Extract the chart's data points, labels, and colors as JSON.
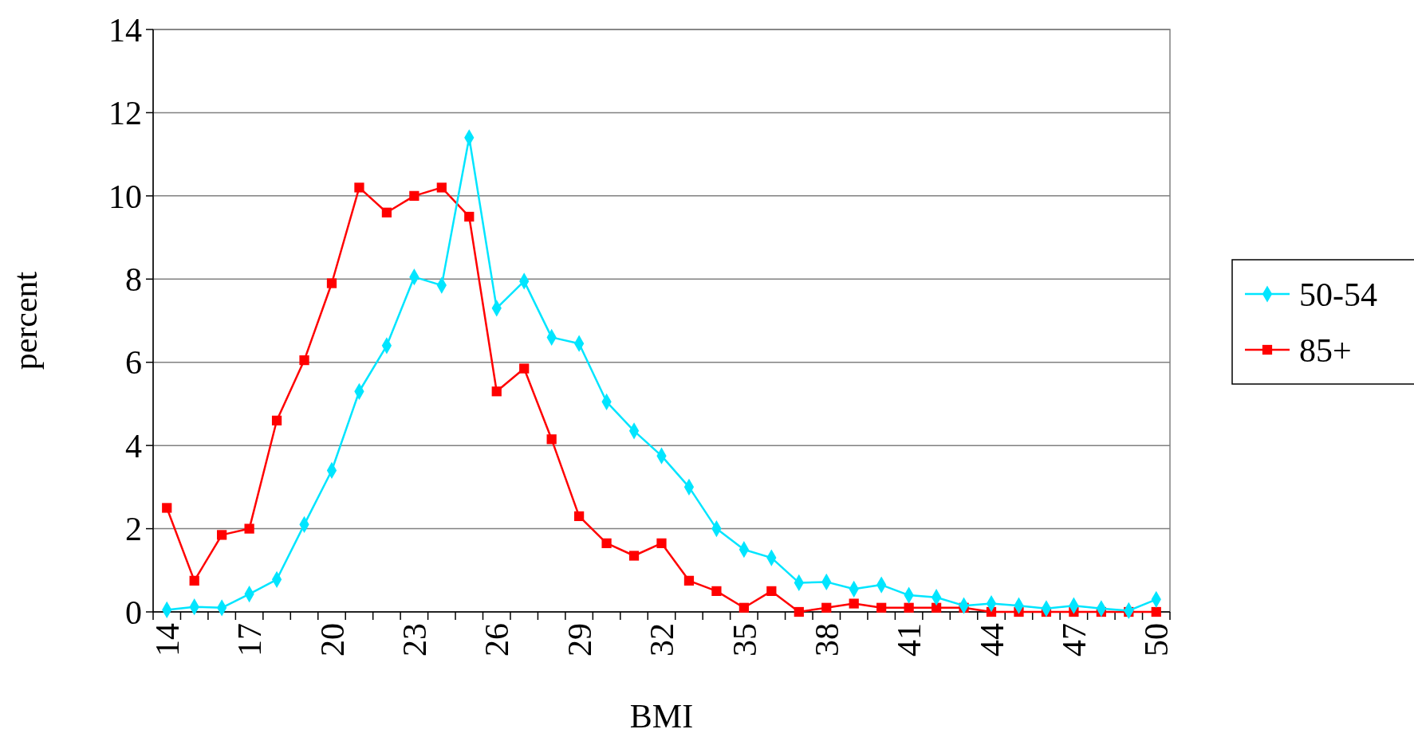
{
  "chart_data": {
    "type": "line",
    "xlabel": "BMI",
    "ylabel": "percent",
    "categories": [
      "14",
      null,
      null,
      "17",
      null,
      null,
      "20",
      null,
      null,
      "23",
      null,
      null,
      "26",
      null,
      null,
      "29",
      null,
      null,
      "32",
      null,
      null,
      "35",
      null,
      null,
      "38",
      null,
      null,
      "41",
      null,
      null,
      "44",
      null,
      null,
      "47",
      null,
      null,
      "50"
    ],
    "series": [
      {
        "name": "50-54",
        "color": "#00e5ff",
        "marker": "diamond",
        "values": [
          0.05,
          0.12,
          0.1,
          0.43,
          0.78,
          2.1,
          3.4,
          5.3,
          6.4,
          8.05,
          7.85,
          11.4,
          7.3,
          7.95,
          6.6,
          6.45,
          5.05,
          4.35,
          3.75,
          3.0,
          2.0,
          1.5,
          1.3,
          0.7,
          0.72,
          0.55,
          0.65,
          0.4,
          0.35,
          0.15,
          0.2,
          0.15,
          0.08,
          0.15,
          0.08,
          0.03,
          0.3
        ]
      },
      {
        "name": "85+",
        "color": "#ff0000",
        "marker": "square",
        "values": [
          2.5,
          0.75,
          1.85,
          2.0,
          4.6,
          6.05,
          7.9,
          10.2,
          9.6,
          10.0,
          10.2,
          9.5,
          5.3,
          5.85,
          4.15,
          2.3,
          1.65,
          1.35,
          1.65,
          0.75,
          0.5,
          0.1,
          0.5,
          0,
          0.1,
          0.2,
          0.1,
          0.1,
          0.1,
          0.1,
          0,
          0,
          0,
          0,
          0,
          0,
          0
        ]
      }
    ],
    "ylim": [
      0,
      14
    ],
    "yticks": [
      0,
      2,
      4,
      6,
      8,
      10,
      12,
      14
    ],
    "grid": "y",
    "legend": "right",
    "line_style": "solid"
  }
}
